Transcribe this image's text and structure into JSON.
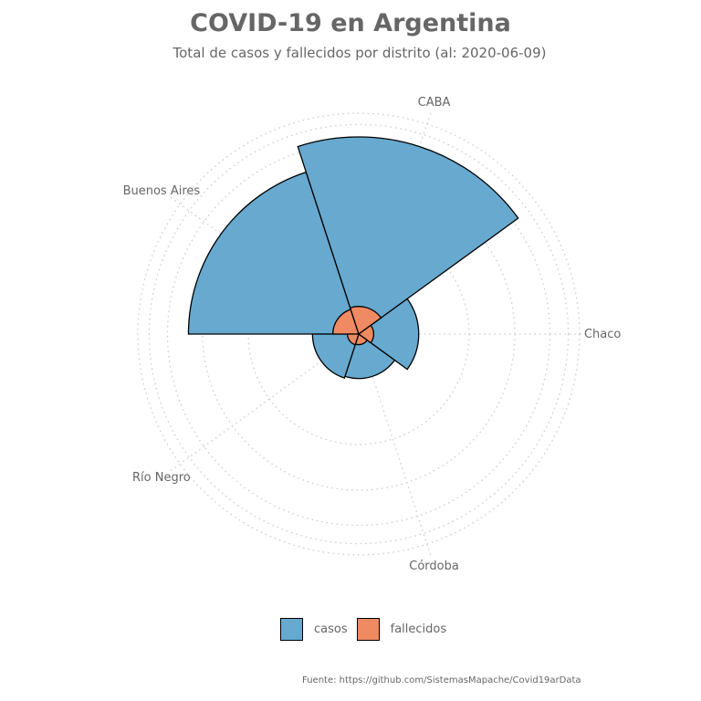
{
  "title": "COVID-19 en Argentina",
  "subtitle": "Total de casos y fallecidos por distrito (al: 2020-06-09)",
  "source": "Fuente: https://github.com/SistemasMapache/Covid19arData",
  "colors": {
    "casos": "#67a9cf",
    "fallecidos": "#ef8a62",
    "grid": "#cccccc",
    "text": "#666666"
  },
  "chart_data": {
    "type": "bar",
    "polar": true,
    "scale": "sqrt",
    "categories": [
      "Buenos Aires",
      "CABA",
      "Chaco",
      "Córdoba",
      "Río Negro"
    ],
    "series": [
      {
        "name": "casos",
        "values": [
          9100,
          12200,
          1130,
          620,
          670
        ]
      },
      {
        "name": "fallecidos",
        "values": [
          210,
          240,
          70,
          35,
          40
        ]
      }
    ],
    "grid": true,
    "legend": "bottom"
  }
}
